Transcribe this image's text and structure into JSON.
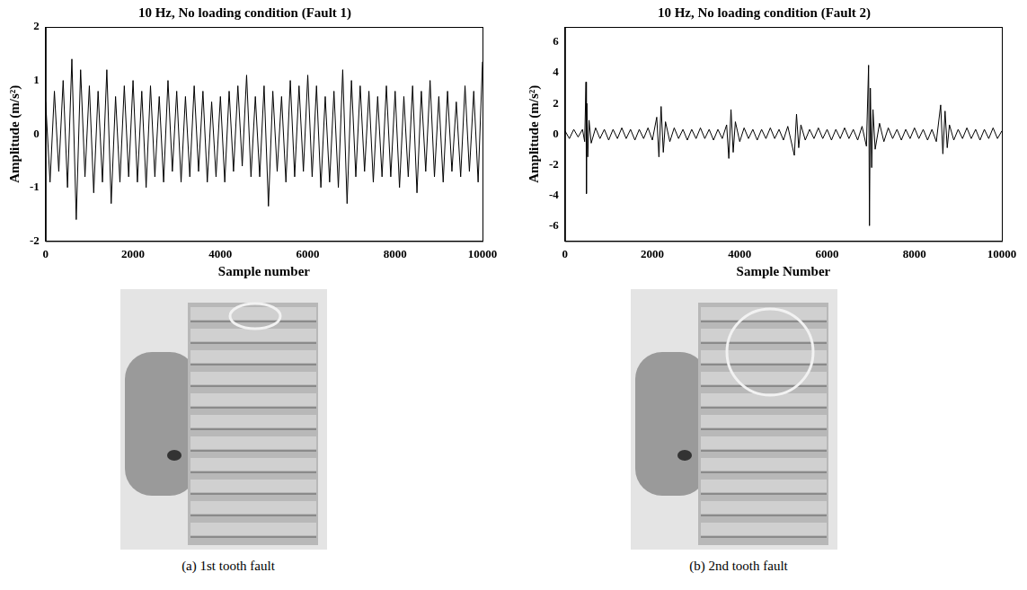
{
  "chart_data": [
    {
      "type": "line",
      "title": "10 Hz, No loading condition (Fault 1)",
      "x_label": "Sample number",
      "y_label": "Amplitude (m/s²)",
      "caption": "(a) 1st tooth fault",
      "color": "#000000",
      "grid": false,
      "xlim": [
        0,
        10000
      ],
      "xticks": [
        0,
        2000,
        4000,
        6000,
        8000,
        10000
      ],
      "ylim": [
        -2,
        2
      ],
      "yticks": [
        -2,
        -1,
        0,
        1,
        2
      ],
      "x": [
        0,
        100,
        200,
        300,
        400,
        500,
        600,
        700,
        800,
        900,
        1000,
        1100,
        1200,
        1300,
        1400,
        1500,
        1600,
        1700,
        1800,
        1900,
        2000,
        2100,
        2200,
        2300,
        2400,
        2500,
        2600,
        2700,
        2800,
        2900,
        3000,
        3100,
        3200,
        3300,
        3400,
        3500,
        3600,
        3700,
        3800,
        3900,
        4000,
        4100,
        4200,
        4300,
        4400,
        4500,
        4600,
        4700,
        4800,
        4900,
        5000,
        5100,
        5200,
        5300,
        5400,
        5500,
        5600,
        5700,
        5800,
        5900,
        6000,
        6100,
        6200,
        6300,
        6400,
        6500,
        6600,
        6700,
        6800,
        6900,
        7000,
        7100,
        7200,
        7300,
        7400,
        7500,
        7600,
        7700,
        7800,
        7900,
        8000,
        8100,
        8200,
        8300,
        8400,
        8500,
        8600,
        8700,
        8800,
        8900,
        9000,
        9100,
        9200,
        9300,
        9400,
        9500,
        9600,
        9700,
        9800,
        9900,
        10000
      ],
      "values": [
        0.6,
        -0.9,
        0.8,
        -0.7,
        1.0,
        -1.0,
        1.4,
        -1.6,
        1.2,
        -0.8,
        0.9,
        -1.1,
        0.8,
        -0.9,
        1.2,
        -1.3,
        0.7,
        -0.9,
        0.9,
        -0.8,
        1.0,
        -0.9,
        0.8,
        -1.0,
        0.9,
        -0.8,
        0.7,
        -0.9,
        1.0,
        -0.7,
        0.8,
        -0.9,
        0.7,
        -0.8,
        0.9,
        -0.7,
        0.8,
        -0.9,
        0.6,
        -0.8,
        0.7,
        -0.9,
        0.8,
        -0.7,
        0.9,
        -0.6,
        1.1,
        -0.8,
        0.7,
        -0.8,
        0.9,
        -1.35,
        0.8,
        -0.7,
        0.7,
        -0.9,
        1.0,
        -0.8,
        0.9,
        -0.7,
        1.1,
        -0.8,
        0.9,
        -1.0,
        0.7,
        -0.9,
        0.8,
        -1.0,
        1.2,
        -1.3,
        1.0,
        -0.8,
        0.9,
        -0.7,
        0.8,
        -0.9,
        0.7,
        -0.8,
        0.9,
        -0.8,
        0.8,
        -1.0,
        0.7,
        -0.8,
        0.9,
        -1.1,
        0.8,
        -0.7,
        1.0,
        -0.8,
        0.7,
        -0.9,
        0.8,
        -0.7,
        0.6,
        -0.8,
        0.9,
        -0.7,
        0.8,
        -0.9,
        1.35
      ]
    },
    {
      "type": "line",
      "title": "10 Hz, No loading condition (Fault 2)",
      "x_label": "Sample Number",
      "y_label": "Amplitude (m/s²)",
      "caption": "(b) 2nd tooth fault",
      "color": "#000000",
      "grid": false,
      "xlim": [
        0,
        10000
      ],
      "xticks": [
        0,
        2000,
        4000,
        6000,
        8000,
        10000
      ],
      "ylim": [
        -7,
        7
      ],
      "yticks": [
        -6,
        -4,
        -2,
        0,
        2,
        4,
        6
      ],
      "x": [
        0,
        100,
        200,
        300,
        400,
        450,
        480,
        490,
        500,
        520,
        550,
        600,
        700,
        800,
        900,
        1000,
        1100,
        1200,
        1300,
        1400,
        1500,
        1600,
        1700,
        1800,
        1900,
        2000,
        2100,
        2150,
        2200,
        2250,
        2300,
        2400,
        2500,
        2600,
        2700,
        2800,
        2900,
        3000,
        3100,
        3200,
        3300,
        3400,
        3500,
        3600,
        3700,
        3750,
        3800,
        3850,
        3900,
        4000,
        4100,
        4200,
        4300,
        4400,
        4500,
        4600,
        4700,
        4800,
        4900,
        5000,
        5100,
        5250,
        5300,
        5350,
        5400,
        5500,
        5600,
        5700,
        5800,
        5900,
        6000,
        6100,
        6200,
        6300,
        6400,
        6500,
        6600,
        6700,
        6800,
        6900,
        6950,
        6970,
        6990,
        7020,
        7050,
        7100,
        7200,
        7300,
        7400,
        7500,
        7600,
        7700,
        7800,
        7900,
        8000,
        8100,
        8200,
        8300,
        8400,
        8500,
        8600,
        8650,
        8700,
        8750,
        8800,
        8900,
        9000,
        9100,
        9200,
        9300,
        9400,
        9500,
        9600,
        9700,
        9800,
        9900,
        10000
      ],
      "values": [
        0.2,
        -0.3,
        0.3,
        -0.2,
        0.3,
        -0.5,
        3.4,
        -3.9,
        2.0,
        -1.5,
        0.9,
        -0.6,
        0.4,
        -0.3,
        0.3,
        -0.4,
        0.3,
        -0.3,
        0.4,
        -0.3,
        0.3,
        -0.4,
        0.3,
        -0.3,
        0.4,
        -0.4,
        1.1,
        -1.5,
        1.8,
        -1.2,
        0.8,
        -0.5,
        0.4,
        -0.3,
        0.3,
        -0.4,
        0.3,
        -0.3,
        0.4,
        -0.3,
        0.3,
        -0.4,
        0.3,
        -0.3,
        0.6,
        -1.6,
        1.6,
        -1.2,
        0.8,
        -0.5,
        0.4,
        -0.3,
        0.3,
        -0.4,
        0.3,
        -0.3,
        0.4,
        -0.3,
        0.3,
        -0.4,
        0.5,
        -1.4,
        1.3,
        -0.9,
        0.6,
        -0.4,
        0.3,
        -0.3,
        0.4,
        -0.3,
        0.3,
        -0.4,
        0.3,
        -0.3,
        0.4,
        -0.3,
        0.3,
        -0.4,
        0.5,
        -0.8,
        4.5,
        -6.0,
        3.0,
        -2.2,
        1.6,
        -1.0,
        0.7,
        -0.5,
        0.4,
        -0.3,
        0.3,
        -0.4,
        0.3,
        -0.3,
        0.4,
        -0.3,
        0.3,
        -0.4,
        0.3,
        -0.5,
        1.9,
        -1.3,
        1.5,
        -0.9,
        0.6,
        -0.4,
        0.3,
        -0.3,
        0.4,
        -0.3,
        0.3,
        -0.4,
        0.3,
        -0.3,
        0.4,
        -0.3,
        0.2
      ]
    }
  ]
}
